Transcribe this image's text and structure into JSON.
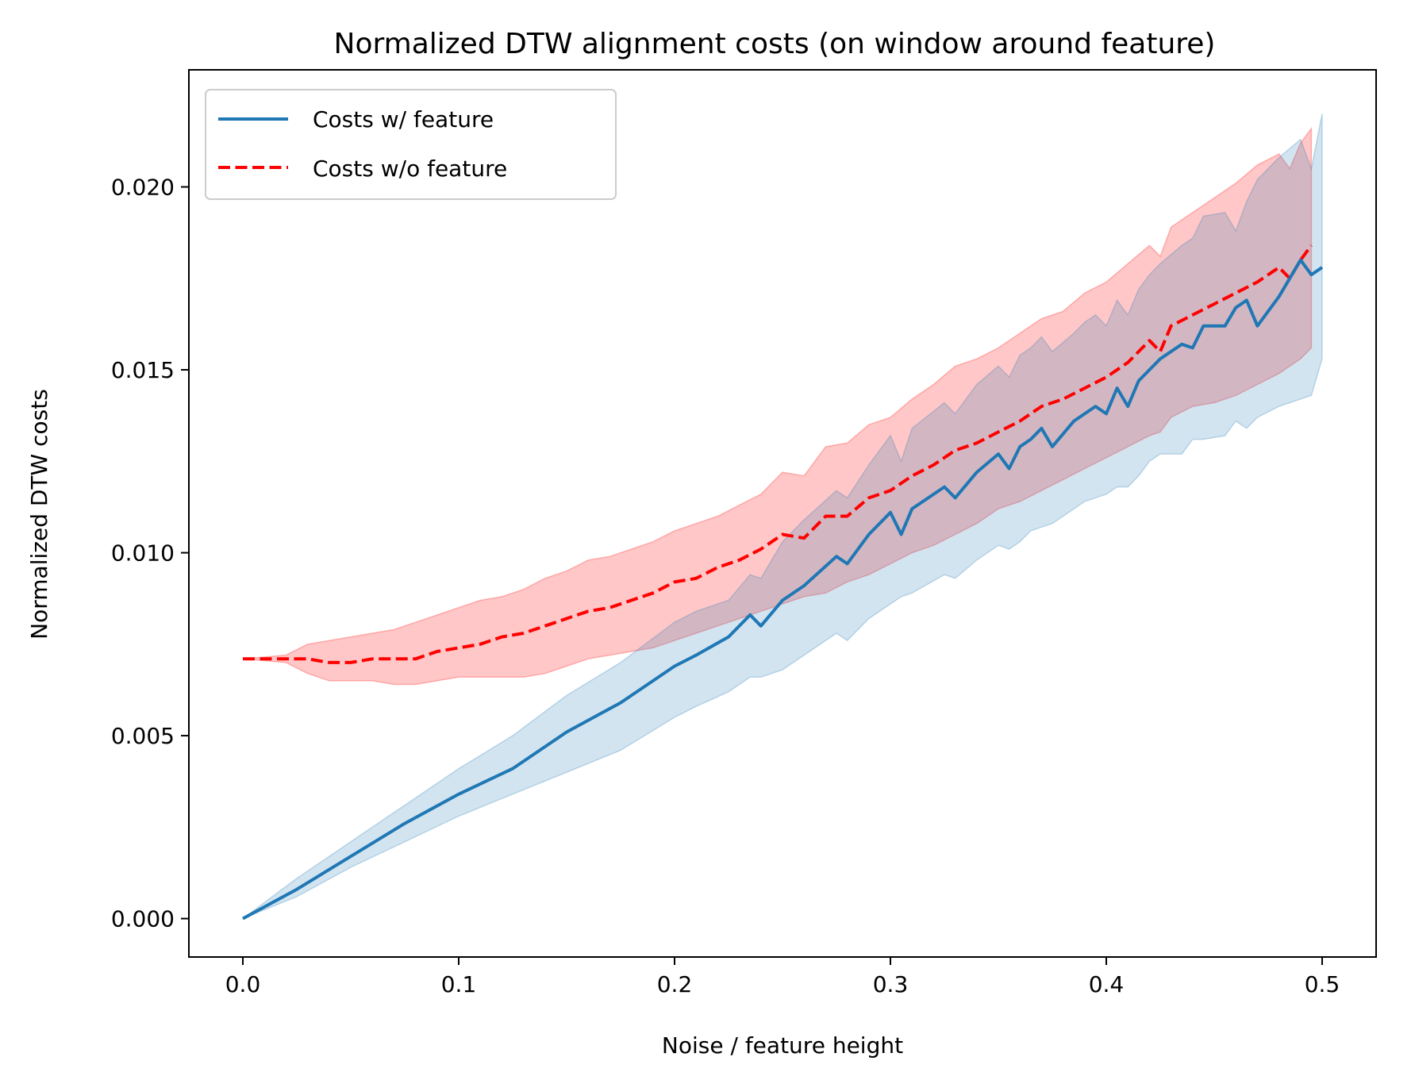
{
  "chart_data": {
    "type": "line",
    "title": "Normalized DTW alignment costs (on window around feature)",
    "xlabel": "Noise / feature height",
    "ylabel": "Normalized DTW costs",
    "xlim": [
      -0.025,
      0.525
    ],
    "ylim": [
      -0.00105,
      0.0232
    ],
    "xticks": [
      0.0,
      0.1,
      0.2,
      0.3,
      0.4,
      0.5
    ],
    "xtick_labels": [
      "0.0",
      "0.1",
      "0.2",
      "0.3",
      "0.4",
      "0.5"
    ],
    "yticks": [
      0.0,
      0.005,
      0.01,
      0.015,
      0.02
    ],
    "ytick_labels": [
      "0.000",
      "0.005",
      "0.010",
      "0.015",
      "0.020"
    ],
    "grid": false,
    "legend_position": "upper-left",
    "series": [
      {
        "name": "Costs w/ feature",
        "color": "#1f77b4",
        "style": "solid",
        "x": [
          0.0,
          0.025,
          0.05,
          0.075,
          0.1,
          0.125,
          0.15,
          0.175,
          0.2,
          0.21,
          0.225,
          0.235,
          0.24,
          0.25,
          0.26,
          0.275,
          0.28,
          0.29,
          0.3,
          0.305,
          0.31,
          0.325,
          0.33,
          0.34,
          0.35,
          0.355,
          0.36,
          0.365,
          0.37,
          0.375,
          0.385,
          0.39,
          0.395,
          0.4,
          0.405,
          0.41,
          0.415,
          0.42,
          0.425,
          0.435,
          0.44,
          0.445,
          0.455,
          0.46,
          0.465,
          0.47,
          0.48,
          0.49,
          0.495,
          0.5
        ],
        "y": [
          0.0,
          0.0008,
          0.0017,
          0.0026,
          0.0034,
          0.0041,
          0.0051,
          0.0059,
          0.0069,
          0.0072,
          0.0077,
          0.0083,
          0.008,
          0.0087,
          0.0091,
          0.0099,
          0.0097,
          0.0105,
          0.0111,
          0.0105,
          0.0112,
          0.0118,
          0.0115,
          0.0122,
          0.0127,
          0.0123,
          0.0129,
          0.0131,
          0.0134,
          0.0129,
          0.0136,
          0.0138,
          0.014,
          0.0138,
          0.0145,
          0.014,
          0.0147,
          0.015,
          0.0153,
          0.0157,
          0.0156,
          0.0162,
          0.0162,
          0.0167,
          0.0169,
          0.0162,
          0.017,
          0.018,
          0.0176,
          0.0178
        ],
        "band_lower": [
          0.0,
          0.0006,
          0.0014,
          0.0021,
          0.0028,
          0.0034,
          0.004,
          0.0046,
          0.0055,
          0.0058,
          0.0062,
          0.0066,
          0.0066,
          0.0068,
          0.0072,
          0.0078,
          0.0076,
          0.0082,
          0.0086,
          0.0088,
          0.0089,
          0.0094,
          0.0093,
          0.0098,
          0.0102,
          0.0101,
          0.0103,
          0.0106,
          0.0107,
          0.0108,
          0.0112,
          0.0114,
          0.0115,
          0.0116,
          0.0118,
          0.0118,
          0.0121,
          0.0125,
          0.0127,
          0.0127,
          0.0131,
          0.0131,
          0.0132,
          0.0136,
          0.0134,
          0.0137,
          0.014,
          0.0142,
          0.0143,
          0.0153
        ],
        "band_upper": [
          0.0,
          0.0011,
          0.0021,
          0.0031,
          0.0041,
          0.005,
          0.0061,
          0.007,
          0.0081,
          0.0084,
          0.0087,
          0.0094,
          0.0093,
          0.0103,
          0.0109,
          0.0117,
          0.0115,
          0.0124,
          0.0132,
          0.0125,
          0.0134,
          0.0141,
          0.0138,
          0.0146,
          0.0151,
          0.0148,
          0.0154,
          0.0156,
          0.0159,
          0.0155,
          0.016,
          0.0163,
          0.0165,
          0.0162,
          0.0169,
          0.0165,
          0.0172,
          0.0176,
          0.0179,
          0.0184,
          0.0186,
          0.0192,
          0.0193,
          0.0188,
          0.0196,
          0.0202,
          0.0208,
          0.0213,
          0.0205,
          0.022
        ]
      },
      {
        "name": "Costs w/o feature",
        "color": "#ff0000",
        "style": "dashed",
        "x": [
          0.0,
          0.02,
          0.03,
          0.04,
          0.05,
          0.06,
          0.07,
          0.08,
          0.09,
          0.1,
          0.11,
          0.12,
          0.13,
          0.14,
          0.15,
          0.16,
          0.17,
          0.18,
          0.19,
          0.2,
          0.21,
          0.22,
          0.23,
          0.24,
          0.25,
          0.26,
          0.27,
          0.28,
          0.29,
          0.3,
          0.31,
          0.32,
          0.33,
          0.34,
          0.35,
          0.36,
          0.37,
          0.38,
          0.39,
          0.4,
          0.41,
          0.42,
          0.425,
          0.43,
          0.44,
          0.45,
          0.46,
          0.47,
          0.48,
          0.485,
          0.49,
          0.495
        ],
        "y": [
          0.0071,
          0.0071,
          0.0071,
          0.007,
          0.007,
          0.0071,
          0.0071,
          0.0071,
          0.0073,
          0.0074,
          0.0075,
          0.0077,
          0.0078,
          0.008,
          0.0082,
          0.0084,
          0.0085,
          0.0087,
          0.0089,
          0.0092,
          0.0093,
          0.0096,
          0.0098,
          0.0101,
          0.0105,
          0.0104,
          0.011,
          0.011,
          0.0115,
          0.0117,
          0.0121,
          0.0124,
          0.0128,
          0.013,
          0.0133,
          0.0136,
          0.014,
          0.0142,
          0.0145,
          0.0148,
          0.0152,
          0.0158,
          0.0155,
          0.0162,
          0.0165,
          0.0168,
          0.0171,
          0.0174,
          0.0178,
          0.0175,
          0.018,
          0.0184
        ],
        "band_lower": [
          0.0071,
          0.007,
          0.0067,
          0.0065,
          0.0065,
          0.0065,
          0.0064,
          0.0064,
          0.0065,
          0.0066,
          0.0066,
          0.0066,
          0.0066,
          0.0067,
          0.0069,
          0.0071,
          0.0072,
          0.0073,
          0.0074,
          0.0076,
          0.0078,
          0.008,
          0.0082,
          0.0084,
          0.0086,
          0.0088,
          0.0089,
          0.0092,
          0.0094,
          0.0097,
          0.01,
          0.0102,
          0.0105,
          0.0108,
          0.0112,
          0.0114,
          0.0117,
          0.012,
          0.0123,
          0.0126,
          0.0129,
          0.0132,
          0.0133,
          0.0137,
          0.014,
          0.0141,
          0.0143,
          0.0146,
          0.0149,
          0.0151,
          0.0153,
          0.0156
        ],
        "band_upper": [
          0.0071,
          0.0072,
          0.0075,
          0.0076,
          0.0077,
          0.0078,
          0.0079,
          0.0081,
          0.0083,
          0.0085,
          0.0087,
          0.0088,
          0.009,
          0.0093,
          0.0095,
          0.0098,
          0.0099,
          0.0101,
          0.0103,
          0.0106,
          0.0108,
          0.011,
          0.0113,
          0.0116,
          0.0122,
          0.0121,
          0.0129,
          0.013,
          0.0135,
          0.0137,
          0.0142,
          0.0146,
          0.0151,
          0.0153,
          0.0156,
          0.016,
          0.0164,
          0.0166,
          0.0171,
          0.0174,
          0.0179,
          0.0184,
          0.0181,
          0.0189,
          0.0193,
          0.0197,
          0.0201,
          0.0206,
          0.0209,
          0.0205,
          0.0212,
          0.0216
        ]
      }
    ]
  }
}
